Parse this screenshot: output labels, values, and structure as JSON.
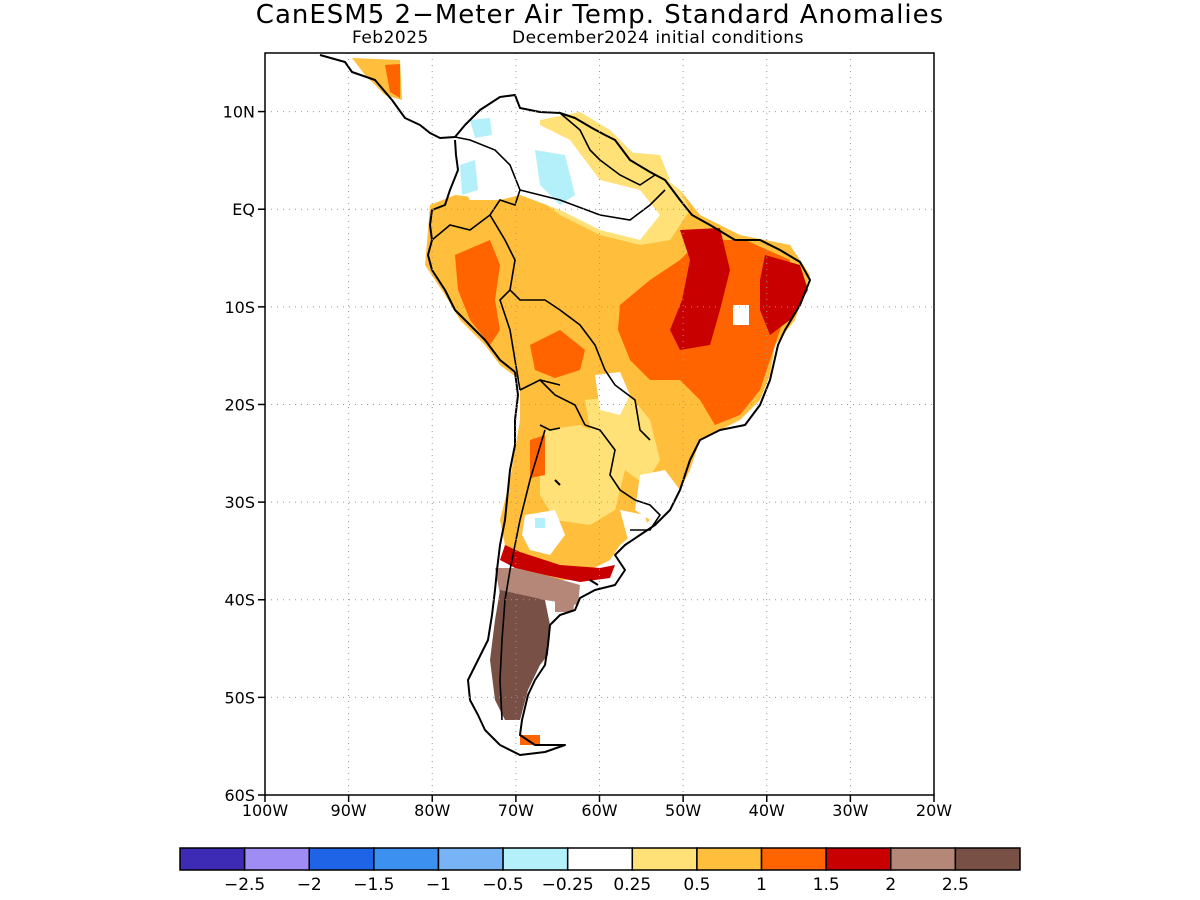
{
  "title": "CanESM5 2−Meter Air Temp. Standard Anomalies",
  "subtitle_left": "Feb2025",
  "subtitle_right": "December2024 initial conditions",
  "map": {
    "lon_range": [
      -100,
      -20
    ],
    "lat_range": [
      -60,
      16
    ],
    "lat_ticks": [
      {
        "value": 10,
        "label": "10N"
      },
      {
        "value": 0,
        "label": "EQ"
      },
      {
        "value": -10,
        "label": "10S"
      },
      {
        "value": -20,
        "label": "20S"
      },
      {
        "value": -30,
        "label": "30S"
      },
      {
        "value": -40,
        "label": "40S"
      },
      {
        "value": -50,
        "label": "50S"
      },
      {
        "value": -60,
        "label": "60S"
      }
    ],
    "lon_ticks": [
      {
        "value": -100,
        "label": "100W"
      },
      {
        "value": -90,
        "label": "90W"
      },
      {
        "value": -80,
        "label": "80W"
      },
      {
        "value": -70,
        "label": "70W"
      },
      {
        "value": -60,
        "label": "60W"
      },
      {
        "value": -50,
        "label": "50W"
      },
      {
        "value": -40,
        "label": "40W"
      },
      {
        "value": -30,
        "label": "30W"
      },
      {
        "value": -20,
        "label": "20W"
      }
    ],
    "grid": true
  },
  "colorbar": {
    "colors": [
      "#3d2ab5",
      "#9f8cf5",
      "#1f64e6",
      "#3c91f0",
      "#78b4f5",
      "#b4f0fa",
      "#ffffff",
      "#ffe178",
      "#ffbe3c",
      "#ff6400",
      "#c80000",
      "#b48778",
      "#785046"
    ],
    "labels": [
      "−2.5",
      "−2",
      "−1.5",
      "−1",
      "−0.5",
      "−0.25",
      "0.25",
      "0.5",
      "1",
      "1.5",
      "2",
      "2.5"
    ]
  }
}
